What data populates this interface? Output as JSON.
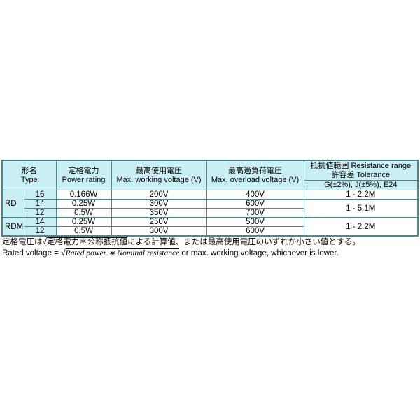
{
  "colors": {
    "header_bg": "#c9eef4",
    "border_major": "#4e858d",
    "border_minor": "#93aeb2",
    "cell_bg": "#ffffff",
    "text": "#000000"
  },
  "table": {
    "header": {
      "type_ja": "形名",
      "type_en": "Type",
      "power_ja": "定格電力",
      "power_en": "Power rating",
      "working_ja": "最高使用電圧",
      "working_en": "Max. working voltage (V)",
      "overload_ja": "最高過負荷電圧",
      "overload_en": "Max. overload voltage (V)",
      "resistance_line1": "抵抗値範囲 Resistance range",
      "resistance_line2": "許容差 Tolerance",
      "resistance_line3": "G(±2%), J(±5%), E24"
    },
    "rows": [
      {
        "type": "RD",
        "size": "16",
        "power": "0.166W",
        "working": "200V",
        "overload": "400V",
        "range": "1 - 2.2M"
      },
      {
        "size": "14",
        "power": "0.25W",
        "working": "300V",
        "overload": "600V",
        "range": "1 - 5.1M"
      },
      {
        "size": "12",
        "power": "0.5W",
        "working": "350V",
        "overload": "700V"
      },
      {
        "type": "RDM",
        "size": "14",
        "power": "0.25W",
        "working": "250V",
        "overload": "500V",
        "range": "1 - 2.2M"
      },
      {
        "size": "12",
        "power": "0.5W",
        "working": "300V",
        "overload": "600V"
      }
    ]
  },
  "footnote": {
    "ja_prefix": "定格電圧は",
    "sqrt_symbol": "√",
    "ja_radicand": "定格電力＊公称抵抗値",
    "ja_suffix": "による計算値、または最高使用電圧のいずれか小さい値とする。",
    "en_prefix": "Rated voltage = ",
    "en_radicand": "Rated power ∗ Nominal resistance",
    "en_suffix": " or max. working voltage, whichever is lower."
  }
}
